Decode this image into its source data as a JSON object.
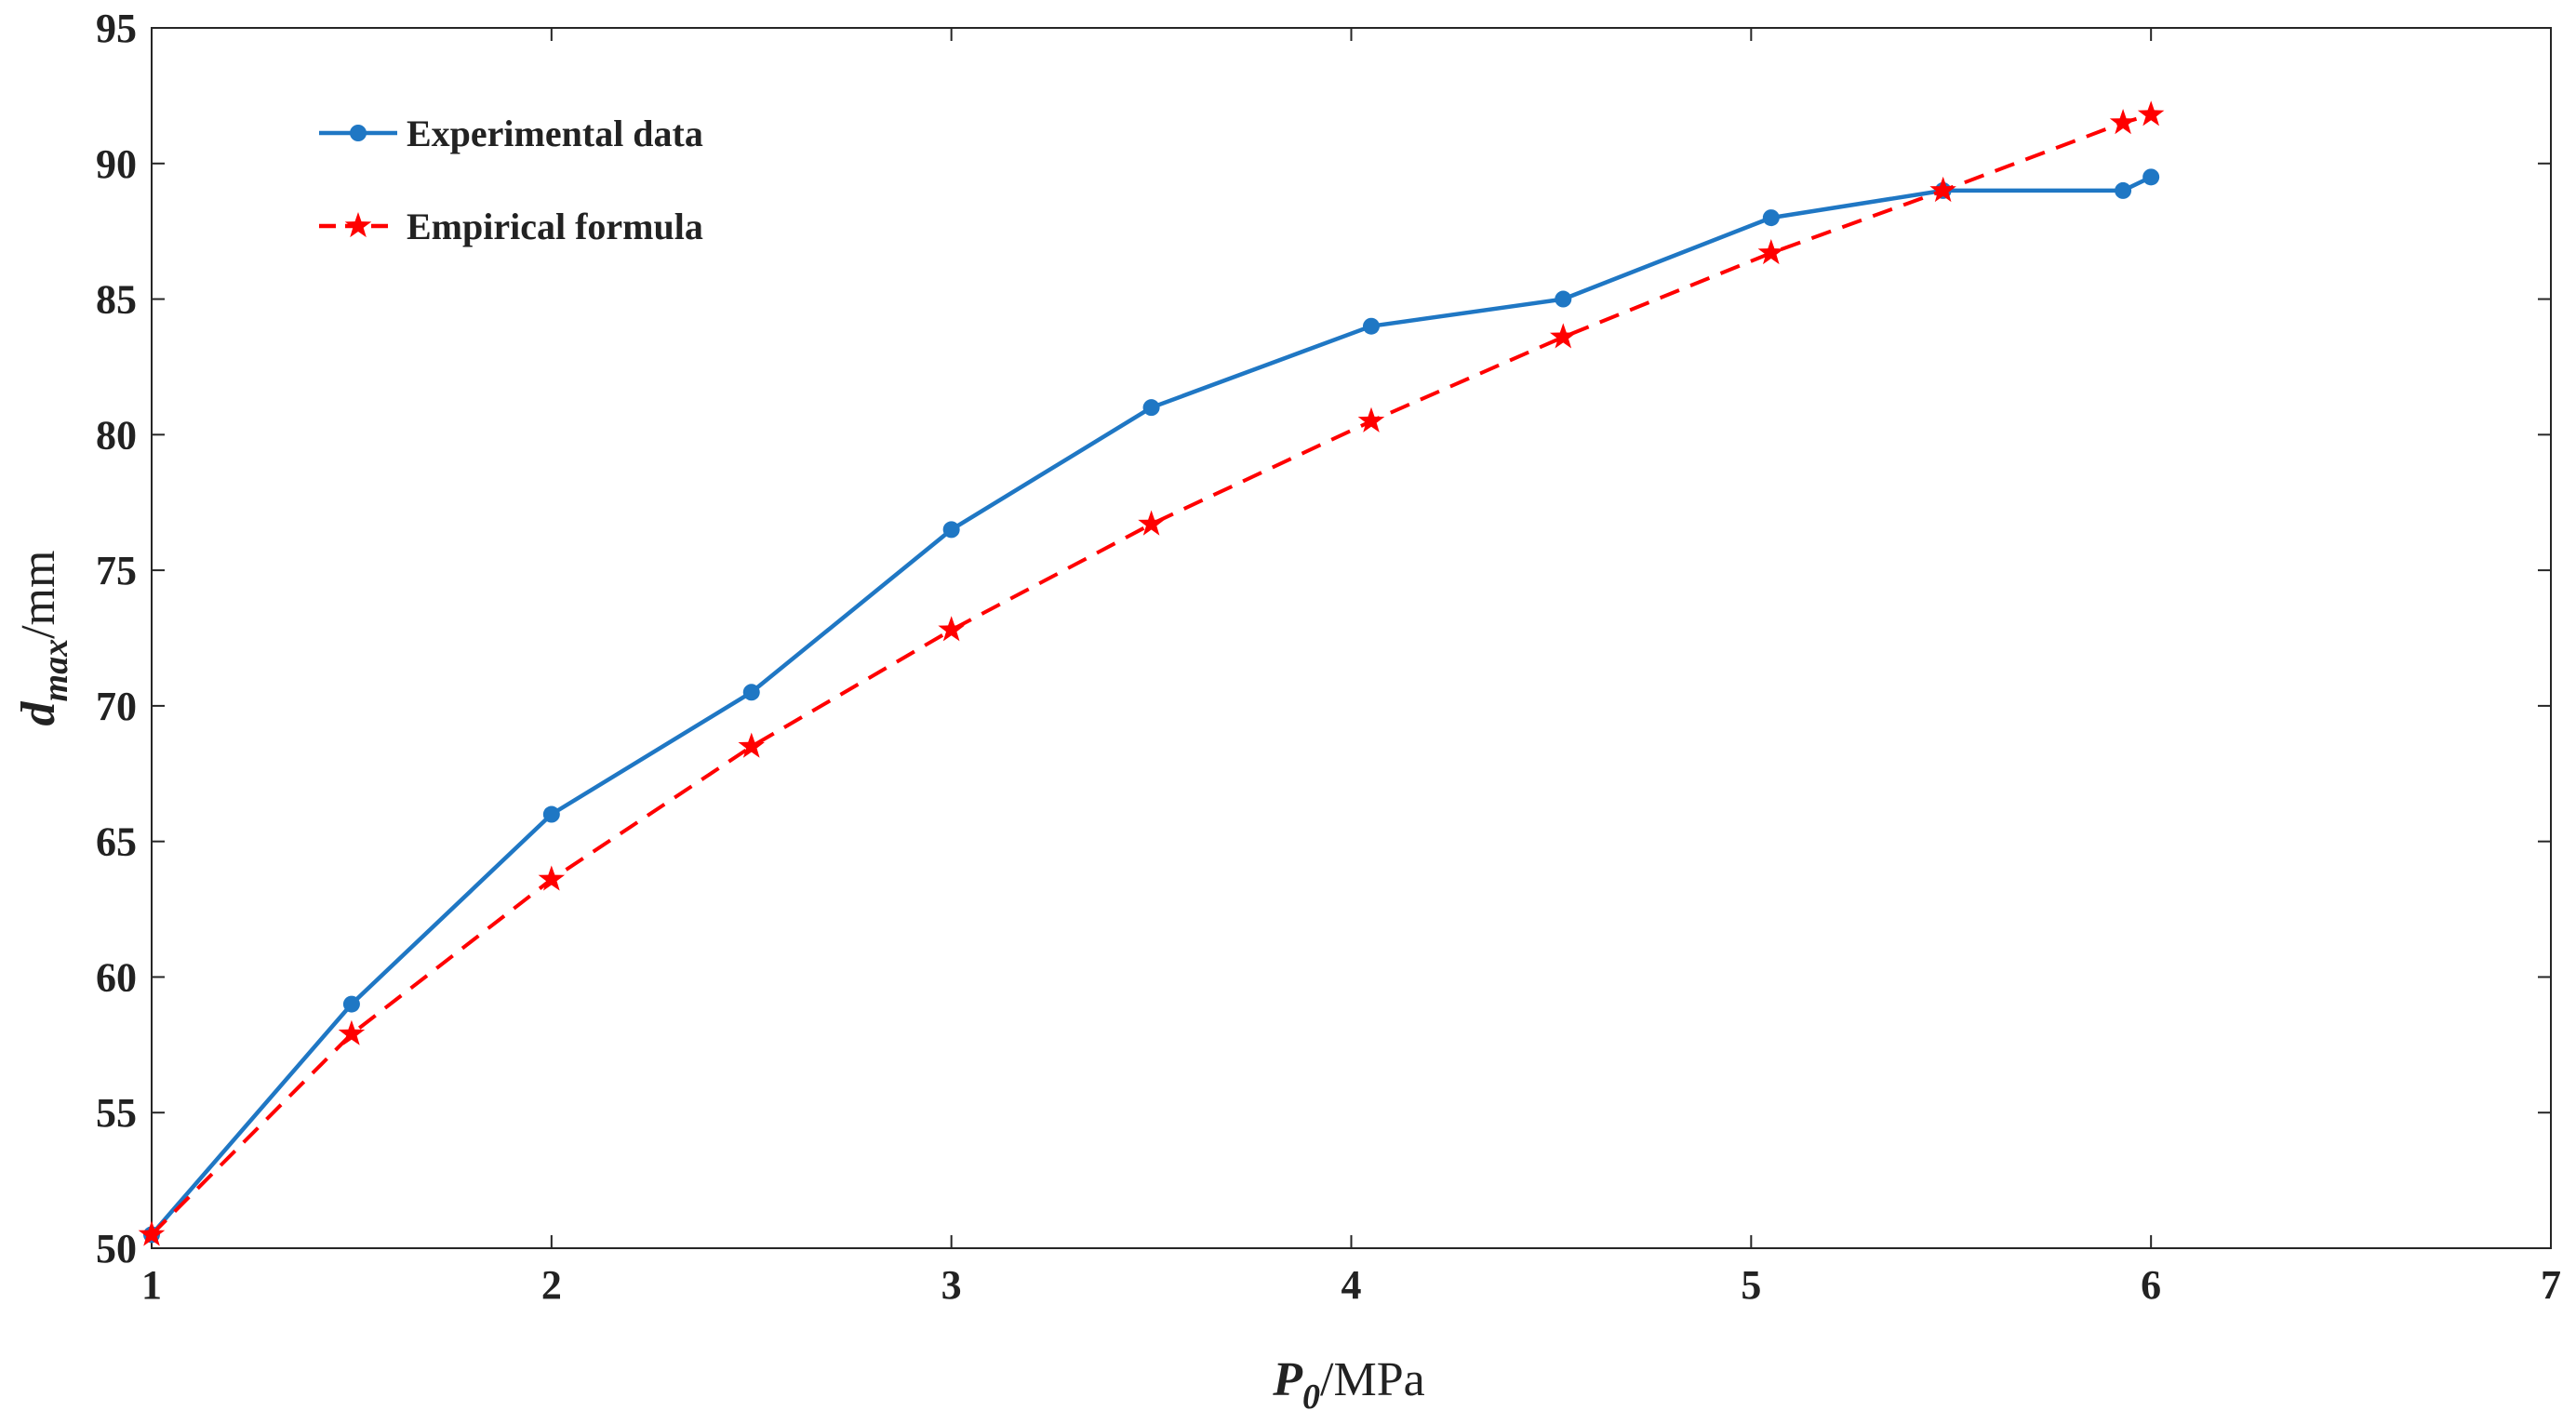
{
  "chart_data": {
    "type": "line",
    "title": "",
    "xlabel": {
      "symbol": "P",
      "subscript": "0",
      "unit": "/MPa"
    },
    "ylabel": {
      "symbol": "d",
      "subscript": "max",
      "unit": "/mm"
    },
    "xlim": [
      1,
      7
    ],
    "ylim": [
      50,
      95
    ],
    "xticks": [
      1,
      2,
      3,
      4,
      5,
      6,
      7
    ],
    "yticks": [
      50,
      55,
      60,
      65,
      70,
      75,
      80,
      85,
      90,
      95
    ],
    "grid": false,
    "legend_position": "top-left",
    "series": [
      {
        "name": "Experimental data",
        "color": "#1f77c4",
        "line_style": "solid",
        "marker": "circle",
        "x": [
          1.0,
          1.5,
          2.0,
          2.5,
          3.0,
          3.5,
          4.05,
          4.53,
          5.05,
          5.48,
          5.93,
          6.0
        ],
        "y": [
          50.5,
          59.0,
          66.0,
          70.5,
          76.5,
          81.0,
          84.0,
          85.0,
          88.0,
          89.0,
          89.0,
          89.5
        ]
      },
      {
        "name": "Empirical formula",
        "color": "#ff0000",
        "line_style": "dashed",
        "marker": "star",
        "x": [
          1.0,
          1.5,
          2.0,
          2.5,
          3.0,
          3.5,
          4.05,
          4.53,
          5.05,
          5.48,
          5.93,
          6.0
        ],
        "y": [
          50.5,
          57.9,
          63.6,
          68.5,
          72.8,
          76.7,
          80.5,
          83.6,
          86.7,
          89.0,
          91.5,
          91.8
        ]
      }
    ]
  }
}
